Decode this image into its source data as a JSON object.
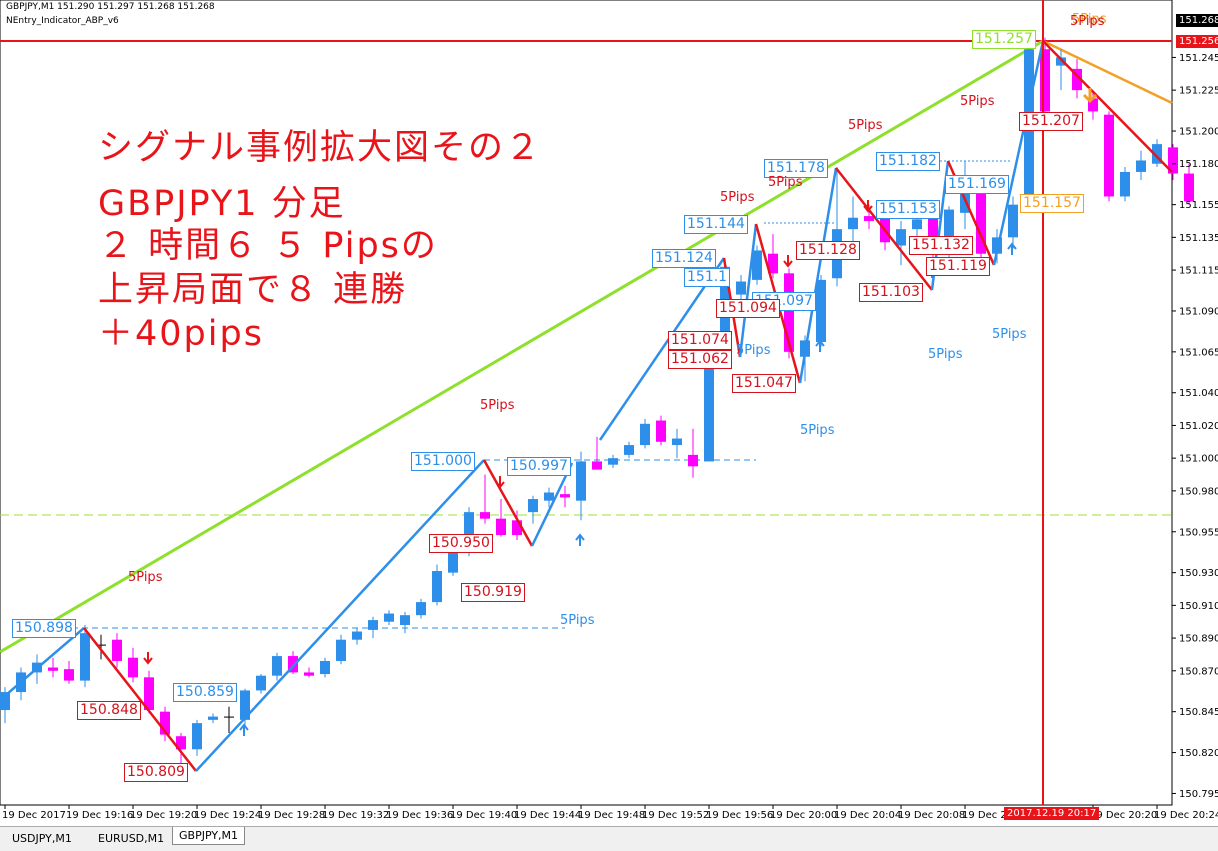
{
  "header": {
    "symbol_info": "GBPJPY,M1  151.290 151.297 151.268 151.268",
    "indicator": "NEntry_Indicator_ABP_v6"
  },
  "overlay_text": [
    "シグナル事例拡大図その２",
    "GBPJPY1 分足",
    "２ 時間６ ５ Pipsの",
    "上昇局面で８ 連勝",
    "＋40pips"
  ],
  "chart_data": {
    "type": "candlestick",
    "up_color": "#2e8fea",
    "down_color": "#ff00ff",
    "doji_color": "#000000",
    "categories": [
      "19 Dec 2017",
      null,
      null,
      null,
      "19 Dec 19:16",
      null,
      null,
      null,
      "19 Dec 19:20",
      null,
      null,
      null,
      "19 Dec 19:24",
      null,
      null,
      null,
      "19 Dec 19:28",
      null,
      null,
      null,
      "19 Dec 19:32",
      null,
      null,
      null,
      "19 Dec 19:36",
      null,
      null,
      null,
      "19 Dec 19:40",
      null,
      null,
      null,
      "19 Dec 19:44",
      null,
      null,
      null,
      "19 Dec 19:48",
      null,
      null,
      null,
      "19 Dec 19:52",
      null,
      null,
      null,
      "19 Dec 19:56",
      null,
      null,
      null,
      "19 Dec 20:00",
      null,
      null,
      null,
      "19 Dec 20:04",
      null,
      null,
      null,
      "19 Dec 20:08",
      null,
      null,
      null,
      "19 Dec 20",
      null,
      null,
      null,
      null,
      null,
      null,
      null,
      "19 Dec 20:20",
      null,
      null,
      null,
      "19 Dec 20:24",
      null,
      null
    ],
    "open": [
      150.846,
      150.857,
      150.869,
      150.872,
      150.871,
      150.864,
      150.886,
      150.889,
      150.878,
      150.866,
      150.845,
      150.83,
      150.822,
      150.84,
      150.842,
      150.84,
      150.858,
      150.867,
      150.879,
      150.869,
      150.868,
      150.876,
      150.889,
      150.895,
      150.9,
      150.898,
      150.904,
      150.912,
      150.93,
      150.945,
      150.967,
      150.963,
      150.962,
      150.967,
      150.974,
      150.978,
      150.974,
      150.998,
      150.996,
      151.002,
      151.008,
      151.023,
      151.008,
      151.002,
      150.998,
      151.06,
      151.1,
      151.109,
      151.125,
      151.113,
      151.062,
      151.071,
      151.11,
      151.14,
      151.148,
      151.147,
      151.13,
      151.14,
      151.147,
      151.13,
      151.15,
      151.168,
      151.125,
      151.135,
      151.16,
      151.25,
      151.24,
      151.238,
      151.22,
      151.21,
      151.16,
      151.175,
      151.18,
      151.19,
      151.174
    ],
    "high": [
      150.86,
      150.872,
      150.88,
      150.878,
      150.876,
      150.898,
      150.892,
      150.893,
      150.884,
      150.87,
      150.848,
      150.832,
      150.84,
      150.844,
      150.848,
      150.859,
      150.868,
      150.881,
      150.882,
      150.872,
      150.878,
      150.892,
      150.896,
      150.903,
      150.907,
      150.906,
      150.914,
      150.935,
      150.945,
      150.97,
      150.99,
      150.975,
      150.968,
      150.977,
      150.982,
      150.983,
      151.004,
      151.013,
      151.002,
      151.01,
      151.024,
      151.026,
      151.018,
      151.018,
      151.065,
      151.12,
      151.112,
      151.13,
      151.137,
      151.116,
      151.075,
      151.112,
      151.178,
      151.16,
      151.155,
      151.152,
      151.145,
      151.148,
      151.15,
      151.154,
      151.182,
      151.17,
      151.14,
      151.16,
      151.257,
      151.257,
      151.25,
      151.244,
      151.224,
      151.212,
      151.178,
      151.188,
      151.195,
      151.192,
      151.18
    ],
    "low": [
      150.838,
      150.852,
      150.862,
      150.866,
      150.862,
      150.86,
      150.877,
      150.872,
      150.863,
      150.844,
      150.827,
      150.809,
      150.818,
      150.838,
      150.832,
      150.836,
      150.856,
      150.864,
      150.868,
      150.866,
      150.866,
      150.874,
      150.886,
      150.89,
      150.898,
      150.893,
      150.902,
      150.91,
      150.928,
      150.94,
      150.96,
      150.952,
      150.95,
      150.96,
      150.97,
      150.97,
      150.962,
      150.994,
      150.994,
      151.0,
      151.006,
      151.008,
      151.0,
      150.988,
      150.998,
      151.058,
      151.094,
      151.106,
      151.11,
      151.061,
      151.047,
      151.068,
      151.105,
      151.128,
      151.14,
      151.127,
      151.118,
      151.135,
      151.12,
      151.119,
      151.14,
      151.121,
      151.119,
      151.128,
      151.155,
      151.21,
      151.225,
      151.22,
      151.207,
      151.157,
      151.157,
      151.17,
      151.178,
      151.17,
      151.155
    ],
    "close": [
      150.857,
      150.869,
      150.875,
      150.87,
      150.864,
      150.893,
      150.886,
      150.876,
      150.866,
      150.846,
      150.831,
      150.822,
      150.838,
      150.842,
      150.842,
      150.858,
      150.867,
      150.879,
      150.869,
      150.867,
      150.876,
      150.889,
      150.894,
      150.901,
      150.905,
      150.904,
      150.912,
      150.931,
      150.943,
      150.967,
      150.963,
      150.953,
      150.953,
      150.975,
      150.979,
      150.976,
      150.998,
      150.993,
      151.0,
      151.008,
      151.021,
      151.01,
      151.012,
      150.995,
      151.06,
      151.117,
      151.108,
      151.127,
      151.113,
      151.065,
      151.072,
      151.109,
      151.14,
      151.147,
      151.145,
      151.132,
      151.14,
      151.146,
      151.13,
      151.152,
      151.17,
      151.125,
      151.135,
      151.155,
      151.25,
      151.212,
      151.245,
      151.225,
      151.212,
      151.16,
      151.175,
      151.182,
      151.192,
      151.174,
      151.157
    ],
    "ylim": [
      150.791,
      151.274
    ],
    "yticks": [
      151.245,
      151.225,
      {
        "value": 151.2,
        "label": "151.200"
      },
      {
        "value": 151.18,
        "label": "151.180"
      },
      151.155,
      151.135,
      151.115,
      {
        "value": 151.09,
        "label": "151.090"
      },
      151.065,
      {
        "value": 151.04,
        "label": "151.040"
      },
      {
        "value": 151.02,
        "label": "151.020"
      },
      {
        "value": 151,
        "label": "151.000"
      },
      {
        "value": 150.98,
        "label": "150.980"
      },
      150.955,
      {
        "value": 150.93,
        "label": "150.930"
      },
      {
        "value": 150.91,
        "label": "150.910"
      },
      {
        "value": 150.89,
        "label": "150.890"
      },
      {
        "value": 150.87,
        "label": "150.870"
      },
      150.845,
      {
        "value": 150.82,
        "label": "150.820"
      },
      150.795
    ],
    "current_price": 151.268,
    "line_price": 151.256,
    "crosshair_time_label": "2017.12.19 20:17",
    "price_labels": [
      "150.898",
      "150.859",
      "151.000",
      "150.997",
      "151.124",
      "151.144",
      "151.1",
      "151.097",
      "151.178",
      "151.182",
      "151.153",
      "151.169",
      "150.848",
      "150.809",
      "150.950",
      "150.919",
      "151.074",
      "151.062",
      "151.094",
      "151.047",
      "151.128",
      "151.103",
      "151.132",
      "151.119",
      "151.207",
      "151.257",
      "151.157"
    ],
    "pips_labels": [
      "5Pips",
      "5Pips",
      "5Pips",
      "5Pips",
      "5Pips",
      "5Pips",
      "5Pips",
      "5Pips",
      "5Pips",
      "5Pips",
      "5Pips",
      "5Pips",
      "5Pips"
    ]
  },
  "tabs": [
    "USDJPY,M1",
    "EURUSD,M1",
    "GBPJPY,M1"
  ]
}
